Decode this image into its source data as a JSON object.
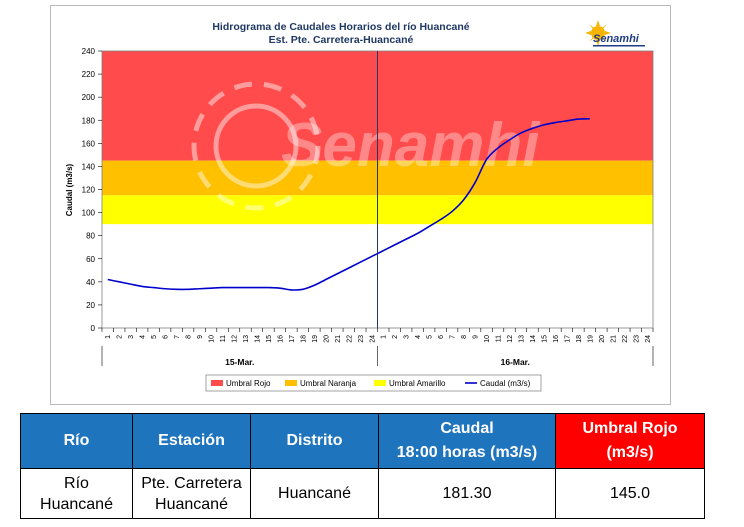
{
  "chart_data": {
    "type": "line",
    "title": "Hidrograma de Caudales Horarios del río Huancané",
    "subtitle": "Est. Pte. Carretera-Huancané",
    "xlabel": "",
    "ylabel": "Caudal  (m3/s)",
    "ylim": [
      0,
      240
    ],
    "yticks": [
      "0",
      "20",
      "40",
      "60",
      "80",
      "100",
      "120",
      "140",
      "160",
      "180",
      "200",
      "220",
      "240"
    ],
    "x_tick_labels": [
      "1",
      "2",
      "3",
      "4",
      "5",
      "6",
      "7",
      "8",
      "9",
      "10",
      "11",
      "12",
      "13",
      "14",
      "15",
      "16",
      "17",
      "18",
      "19",
      "20",
      "21",
      "22",
      "23",
      "24",
      "1",
      "2",
      "3",
      "4",
      "5",
      "6",
      "7",
      "8",
      "9",
      "10",
      "11",
      "12",
      "13",
      "14",
      "15",
      "16",
      "17",
      "18",
      "19",
      "20",
      "21",
      "22",
      "23",
      "24"
    ],
    "day_labels": [
      "15-Mar.",
      "16-Mar."
    ],
    "grid": false,
    "legend_position": "bottom",
    "thresholds": [
      {
        "name": "Umbral Rojo",
        "from": 145,
        "to": 240,
        "color": "#ff4b4b"
      },
      {
        "name": "Umbral Naranja",
        "from": 115,
        "to": 145,
        "color": "#ffc000"
      },
      {
        "name": "Umbral Amarillo",
        "from": 90,
        "to": 115,
        "color": "#ffff00"
      }
    ],
    "series": [
      {
        "name": "Caudal (m3/s)",
        "color": "#0000cc",
        "x": [
          1,
          2,
          3,
          4,
          5,
          6,
          7,
          8,
          9,
          10,
          11,
          12,
          13,
          14,
          15,
          16,
          17,
          18,
          19,
          20,
          21,
          22,
          23,
          24,
          25,
          26,
          27,
          28,
          29,
          30,
          31,
          32,
          33,
          34,
          35,
          36,
          37,
          38,
          39,
          40,
          41,
          42,
          43
        ],
        "values": [
          42,
          40,
          38,
          36,
          35,
          34,
          33.5,
          33.5,
          34,
          34.5,
          35,
          35,
          35,
          35,
          35,
          34.5,
          33,
          33.5,
          37,
          42,
          47,
          52,
          57,
          62,
          67,
          72,
          77,
          82,
          88,
          94,
          101,
          111,
          126,
          146,
          156,
          163,
          169,
          173,
          176,
          178,
          179.5,
          181,
          181.3
        ]
      }
    ],
    "logo": "Senamhi",
    "watermark": "Senamhi"
  },
  "table": {
    "headers": {
      "rio": "Río",
      "estacion": "Estación",
      "distrito": "Distrito",
      "caudal_line1": "Caudal",
      "caudal_line2": "18:00 horas (m3/s)",
      "umbral_line1": "Umbral Rojo",
      "umbral_line2": "(m3/s)"
    },
    "row": {
      "rio_line1": "Río",
      "rio_line2": "Huancané",
      "estacion_line1": "Pte. Carretera",
      "estacion_line2": "Huancané",
      "distrito": "Huancané",
      "caudal": "181.30",
      "umbral": "145.0"
    }
  }
}
